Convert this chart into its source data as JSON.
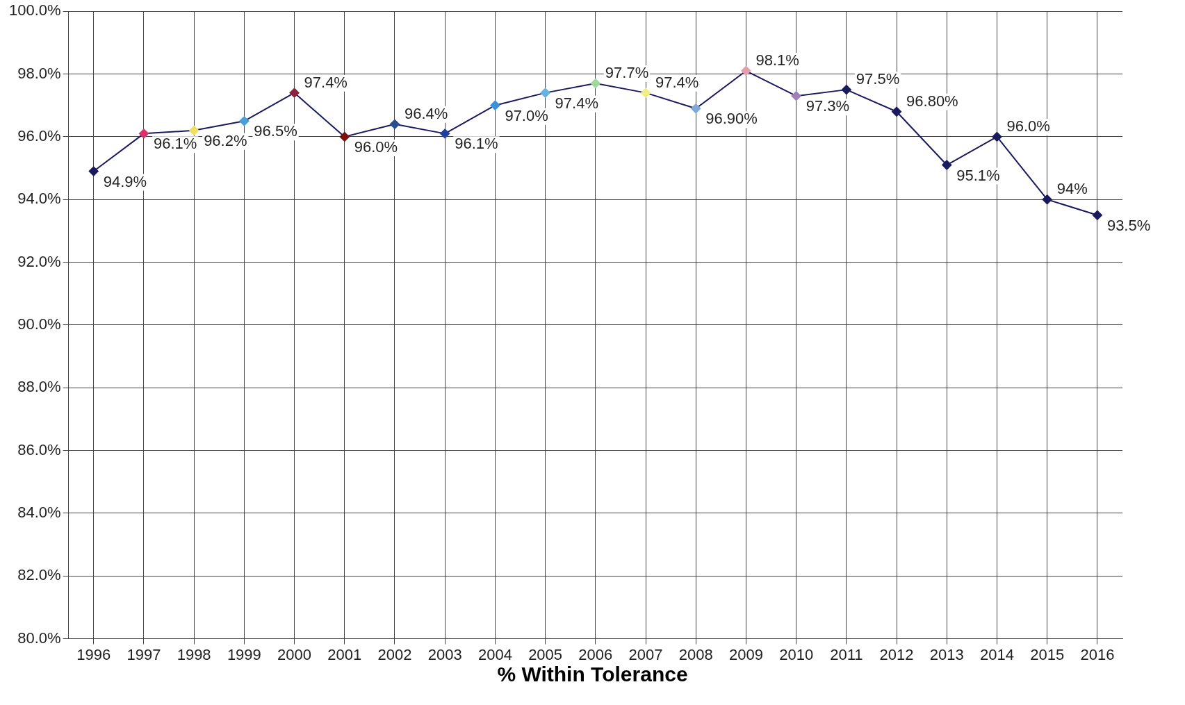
{
  "chart_data": {
    "type": "line",
    "xlabel": "% Within Tolerance",
    "categories": [
      "1996",
      "1997",
      "1998",
      "1999",
      "2000",
      "2001",
      "2002",
      "2003",
      "2004",
      "2005",
      "2006",
      "2007",
      "2008",
      "2009",
      "2010",
      "2011",
      "2012",
      "2013",
      "2014",
      "2015",
      "2016"
    ],
    "values": [
      94.9,
      96.1,
      96.2,
      96.5,
      97.4,
      96.0,
      96.4,
      96.1,
      97.0,
      97.4,
      97.7,
      97.4,
      96.9,
      98.1,
      97.3,
      97.5,
      96.8,
      95.1,
      96.0,
      94,
      93.5
    ],
    "value_labels": [
      "94.9%",
      "96.1%",
      "96.2%",
      "96.5%",
      "97.4%",
      "96.0%",
      "96.4%",
      "96.1%",
      "97.0%",
      "97.4%",
      "97.7%",
      "97.4%",
      "96.90%",
      "98.1%",
      "97.3%",
      "97.5%",
      "96.80%",
      "95.1%",
      "96.0%",
      "94%",
      "93.5%"
    ],
    "colors": [
      "#1a1a5e",
      "#d6336c",
      "#f0e060",
      "#4aa0d0",
      "#8b2040",
      "#7a1010",
      "#2a4f8a",
      "#2040a0",
      "#3c8fd8",
      "#6ab0e0",
      "#a0d8a0",
      "#f0f080",
      "#80a8d8",
      "#e0a0b0",
      "#a080b8",
      "#1a1a5e",
      "#1a1a5e",
      "#1a1a5e",
      "#1a1a5e",
      "#1a1a5e",
      "#1a1a5e"
    ],
    "ylim": [
      80,
      100
    ],
    "yticks": [
      {
        "value": 80,
        "label": "80.0%"
      },
      {
        "value": 82,
        "label": "82.0%"
      },
      {
        "value": 84,
        "label": "84.0%"
      },
      {
        "value": 86,
        "label": "86.0%"
      },
      {
        "value": 88,
        "label": "88.0%"
      },
      {
        "value": 90,
        "label": "90.0%"
      },
      {
        "value": 92,
        "label": "92.0%"
      },
      {
        "value": 94,
        "label": "94.0%"
      },
      {
        "value": 96,
        "label": "96.0%"
      },
      {
        "value": 98,
        "label": "98.0%"
      },
      {
        "value": 100,
        "label": "100.0%"
      }
    ],
    "color": "#1a1a5e",
    "grid": true,
    "marker": "diamond",
    "legend": false
  }
}
